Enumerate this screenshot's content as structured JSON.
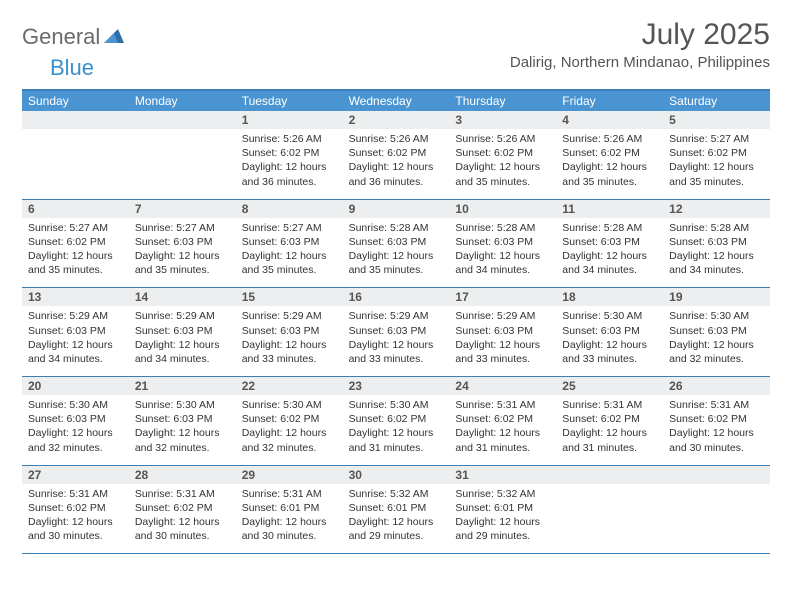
{
  "logo": {
    "text1": "General",
    "text2": "Blue"
  },
  "title": "July 2025",
  "location": "Dalirig, Northern Mindanao, Philippines",
  "colors": {
    "header_bg": "#4a95d1",
    "border": "#3a7fb5",
    "daynum_bg": "#eceeef",
    "logo_gray": "#6b6b6b",
    "logo_blue": "#3a8fd0"
  },
  "day_names": [
    "Sunday",
    "Monday",
    "Tuesday",
    "Wednesday",
    "Thursday",
    "Friday",
    "Saturday"
  ],
  "weeks": [
    {
      "nums": [
        "",
        "",
        "1",
        "2",
        "3",
        "4",
        "5"
      ],
      "cells": [
        null,
        null,
        {
          "sunrise": "5:26 AM",
          "sunset": "6:02 PM",
          "daylight": "12 hours and 36 minutes."
        },
        {
          "sunrise": "5:26 AM",
          "sunset": "6:02 PM",
          "daylight": "12 hours and 36 minutes."
        },
        {
          "sunrise": "5:26 AM",
          "sunset": "6:02 PM",
          "daylight": "12 hours and 35 minutes."
        },
        {
          "sunrise": "5:26 AM",
          "sunset": "6:02 PM",
          "daylight": "12 hours and 35 minutes."
        },
        {
          "sunrise": "5:27 AM",
          "sunset": "6:02 PM",
          "daylight": "12 hours and 35 minutes."
        }
      ]
    },
    {
      "nums": [
        "6",
        "7",
        "8",
        "9",
        "10",
        "11",
        "12"
      ],
      "cells": [
        {
          "sunrise": "5:27 AM",
          "sunset": "6:02 PM",
          "daylight": "12 hours and 35 minutes."
        },
        {
          "sunrise": "5:27 AM",
          "sunset": "6:03 PM",
          "daylight": "12 hours and 35 minutes."
        },
        {
          "sunrise": "5:27 AM",
          "sunset": "6:03 PM",
          "daylight": "12 hours and 35 minutes."
        },
        {
          "sunrise": "5:28 AM",
          "sunset": "6:03 PM",
          "daylight": "12 hours and 35 minutes."
        },
        {
          "sunrise": "5:28 AM",
          "sunset": "6:03 PM",
          "daylight": "12 hours and 34 minutes."
        },
        {
          "sunrise": "5:28 AM",
          "sunset": "6:03 PM",
          "daylight": "12 hours and 34 minutes."
        },
        {
          "sunrise": "5:28 AM",
          "sunset": "6:03 PM",
          "daylight": "12 hours and 34 minutes."
        }
      ]
    },
    {
      "nums": [
        "13",
        "14",
        "15",
        "16",
        "17",
        "18",
        "19"
      ],
      "cells": [
        {
          "sunrise": "5:29 AM",
          "sunset": "6:03 PM",
          "daylight": "12 hours and 34 minutes."
        },
        {
          "sunrise": "5:29 AM",
          "sunset": "6:03 PM",
          "daylight": "12 hours and 34 minutes."
        },
        {
          "sunrise": "5:29 AM",
          "sunset": "6:03 PM",
          "daylight": "12 hours and 33 minutes."
        },
        {
          "sunrise": "5:29 AM",
          "sunset": "6:03 PM",
          "daylight": "12 hours and 33 minutes."
        },
        {
          "sunrise": "5:29 AM",
          "sunset": "6:03 PM",
          "daylight": "12 hours and 33 minutes."
        },
        {
          "sunrise": "5:30 AM",
          "sunset": "6:03 PM",
          "daylight": "12 hours and 33 minutes."
        },
        {
          "sunrise": "5:30 AM",
          "sunset": "6:03 PM",
          "daylight": "12 hours and 32 minutes."
        }
      ]
    },
    {
      "nums": [
        "20",
        "21",
        "22",
        "23",
        "24",
        "25",
        "26"
      ],
      "cells": [
        {
          "sunrise": "5:30 AM",
          "sunset": "6:03 PM",
          "daylight": "12 hours and 32 minutes."
        },
        {
          "sunrise": "5:30 AM",
          "sunset": "6:03 PM",
          "daylight": "12 hours and 32 minutes."
        },
        {
          "sunrise": "5:30 AM",
          "sunset": "6:02 PM",
          "daylight": "12 hours and 32 minutes."
        },
        {
          "sunrise": "5:30 AM",
          "sunset": "6:02 PM",
          "daylight": "12 hours and 31 minutes."
        },
        {
          "sunrise": "5:31 AM",
          "sunset": "6:02 PM",
          "daylight": "12 hours and 31 minutes."
        },
        {
          "sunrise": "5:31 AM",
          "sunset": "6:02 PM",
          "daylight": "12 hours and 31 minutes."
        },
        {
          "sunrise": "5:31 AM",
          "sunset": "6:02 PM",
          "daylight": "12 hours and 30 minutes."
        }
      ]
    },
    {
      "nums": [
        "27",
        "28",
        "29",
        "30",
        "31",
        "",
        ""
      ],
      "cells": [
        {
          "sunrise": "5:31 AM",
          "sunset": "6:02 PM",
          "daylight": "12 hours and 30 minutes."
        },
        {
          "sunrise": "5:31 AM",
          "sunset": "6:02 PM",
          "daylight": "12 hours and 30 minutes."
        },
        {
          "sunrise": "5:31 AM",
          "sunset": "6:01 PM",
          "daylight": "12 hours and 30 minutes."
        },
        {
          "sunrise": "5:32 AM",
          "sunset": "6:01 PM",
          "daylight": "12 hours and 29 minutes."
        },
        {
          "sunrise": "5:32 AM",
          "sunset": "6:01 PM",
          "daylight": "12 hours and 29 minutes."
        },
        null,
        null
      ]
    }
  ],
  "labels": {
    "sunrise": "Sunrise:",
    "sunset": "Sunset:",
    "daylight": "Daylight:"
  }
}
